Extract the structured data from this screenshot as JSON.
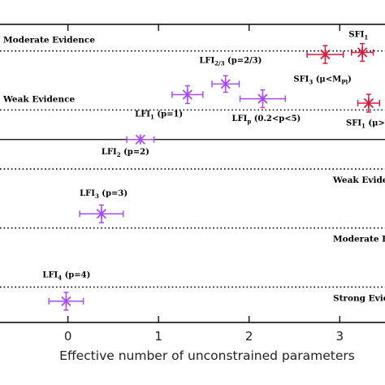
{
  "chart_data": {
    "type": "scatter",
    "xlabel": "Effective number of unconstrained parameters",
    "xlim": [
      -0.75,
      3.5
    ],
    "ylim": [
      -6.2,
      3.9
    ],
    "x_ticks": [
      0,
      1,
      2,
      3
    ],
    "x_tick_labels": [
      "0",
      "1",
      "2",
      "3"
    ],
    "grid": false,
    "reference_lines": [
      {
        "y": 3.0,
        "label": "Moderate Evidence",
        "style": "dotted",
        "label_side": "left",
        "label_pos": "above"
      },
      {
        "y": 1.0,
        "label": "Weak Evidence",
        "style": "dotted",
        "label_side": "left",
        "label_pos": "above"
      },
      {
        "y": 0.0,
        "label": "",
        "style": "solid",
        "label_side": "left",
        "label_pos": "above"
      },
      {
        "y": -1.0,
        "label": "Weak Evide",
        "style": "dotted",
        "label_side": "right",
        "label_pos": "below"
      },
      {
        "y": -3.0,
        "label": "Moderate E",
        "style": "dotted",
        "label_side": "right",
        "label_pos": "below"
      },
      {
        "y": -5.0,
        "label": "Strong Evid",
        "style": "dotted",
        "label_side": "right",
        "label_pos": "below"
      }
    ],
    "colors": {
      "purple": "#a64df2",
      "red": "#d81b3c",
      "axes": "#000000"
    },
    "points": [
      {
        "main": "LFI",
        "sub": "1",
        "rest": " (p=1)",
        "x": 1.32,
        "y": 1.52,
        "xerr": 0.17,
        "yerr": 0.3,
        "color": "purple",
        "label_dx": -0.58,
        "label_dy": -0.75
      },
      {
        "main": "LFI",
        "sub": "2/3",
        "rest": " (p=2/3)",
        "x": 1.74,
        "y": 1.88,
        "xerr": 0.15,
        "yerr": 0.28,
        "color": "purple",
        "label_dx": -0.29,
        "label_dy": 0.71
      },
      {
        "main": "LFI",
        "sub": "p",
        "rest": " (0.2<p<5)",
        "x": 2.15,
        "y": 1.38,
        "xerr": 0.25,
        "yerr": 0.3,
        "color": "purple",
        "label_dx": -0.34,
        "label_dy": -0.76
      },
      {
        "main": "LFI",
        "sub": "2",
        "rest": " (p=2)",
        "x": 0.8,
        "y": 0.0,
        "xerr": 0.15,
        "yerr": 0.0,
        "color": "purple",
        "label_dx": -0.43,
        "label_dy": -0.5
      },
      {
        "main": "LFI",
        "sub": "3",
        "rest": " (p=3)",
        "x": 0.37,
        "y": -2.52,
        "xerr": 0.24,
        "yerr": 0.3,
        "color": "purple",
        "label_dx": -0.24,
        "label_dy": 0.62
      },
      {
        "main": "LFI",
        "sub": "4",
        "rest": " (p=4)",
        "x": -0.02,
        "y": -5.48,
        "xerr": 0.19,
        "yerr": 0.3,
        "color": "purple",
        "label_dx": -0.26,
        "label_dy": 0.81
      },
      {
        "main": "SFI",
        "sub": "1",
        "rest": "",
        "x": 3.25,
        "y": 2.95,
        "xerr": 0.12,
        "yerr": 0.3,
        "color": "red",
        "label_dx": -0.15,
        "label_dy": 0.52
      },
      {
        "main": "SFI",
        "sub": "3",
        "rest": " (μ<M",
        "subtail": "Pl",
        "tail": ")",
        "x": 2.84,
        "y": 2.88,
        "xerr": 0.2,
        "yerr": 0.3,
        "color": "red",
        "label_dx": -0.35,
        "label_dy": -0.92
      },
      {
        "main": "SFI",
        "sub": "1",
        "rest": " (μ>",
        "x": 3.32,
        "y": 1.23,
        "xerr": 0.12,
        "yerr": 0.3,
        "color": "red",
        "label_dx": -0.25,
        "label_dy": -0.76
      }
    ]
  }
}
